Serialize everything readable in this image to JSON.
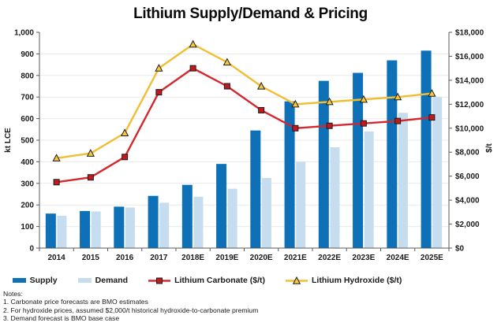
{
  "title": "Lithium Supply/Demand & Pricing",
  "colors": {
    "title": "#0b0b0b",
    "text": "#1a1a1a",
    "axis": "#595959",
    "grid": "#e9e9e9",
    "supply": "#0E71B8",
    "demand": "#C6DDF0",
    "carbonate": "#D2282E",
    "carbonate-marker": "#BE1A20",
    "hydroxide": "#F1BE32",
    "hydroxide-marker": "#F5C840",
    "marker-edge": "#1c1c1c"
  },
  "chart_data": {
    "type": "bar",
    "subtype": "bar-line combo, dual axis",
    "title": "Lithium Supply/Demand & Pricing",
    "grid": "faint horizontal gridlines every 100 kt",
    "legend_position": "bottom",
    "categories": [
      "2014",
      "2015",
      "2016",
      "2017",
      "2018E",
      "2019E",
      "2020E",
      "2021E",
      "2022E",
      "2023E",
      "2024E",
      "2025E"
    ],
    "left_axis": {
      "label": "kt LCE",
      "min": 0,
      "max": 1000,
      "step": 100,
      "prefix": ""
    },
    "right_axis": {
      "label": "$/t",
      "min": 0,
      "max": 18000,
      "step": 2000,
      "prefix": "$"
    },
    "series": [
      {
        "name": "Supply",
        "type": "bar",
        "axis": "left",
        "color_key": "supply",
        "values": [
          160,
          172,
          192,
          242,
          293,
          390,
          545,
          680,
          775,
          812,
          870,
          915
        ]
      },
      {
        "name": "Demand",
        "type": "bar",
        "axis": "left",
        "color_key": "demand",
        "values": [
          150,
          170,
          188,
          210,
          238,
          275,
          325,
          400,
          467,
          540,
          627,
          700
        ]
      },
      {
        "name": "Lithium Carbonate ($/t)",
        "type": "line",
        "axis": "right",
        "color_key": "carbonate",
        "marker": "square",
        "marker_key": "carbonate-marker",
        "values": [
          5500,
          5900,
          7600,
          13000,
          15000,
          13500,
          11500,
          10000,
          10200,
          10400,
          10600,
          10900
        ]
      },
      {
        "name": "Lithium Hydroxide ($/t)",
        "type": "line",
        "axis": "right",
        "color_key": "hydroxide",
        "marker": "triangle",
        "marker_key": "hydroxide-marker",
        "values": [
          7500,
          7900,
          9600,
          15000,
          17000,
          15500,
          13500,
          12000,
          12200,
          12400,
          12600,
          12900
        ]
      }
    ]
  },
  "legend": [
    {
      "label": "Supply"
    },
    {
      "label": "Demand"
    },
    {
      "label": "Lithium Carbonate ($/t)"
    },
    {
      "label": "Lithium Hydroxide ($/t)"
    }
  ],
  "notes": {
    "heading": "Notes:",
    "items": [
      "1. Carbonate price forecasts are BMO estimates",
      "2. For hydroxide prices, assumed $2,000/t historical hydroxide-to-carbonate premium",
      "3. Demand forecast is BMO base case"
    ]
  }
}
